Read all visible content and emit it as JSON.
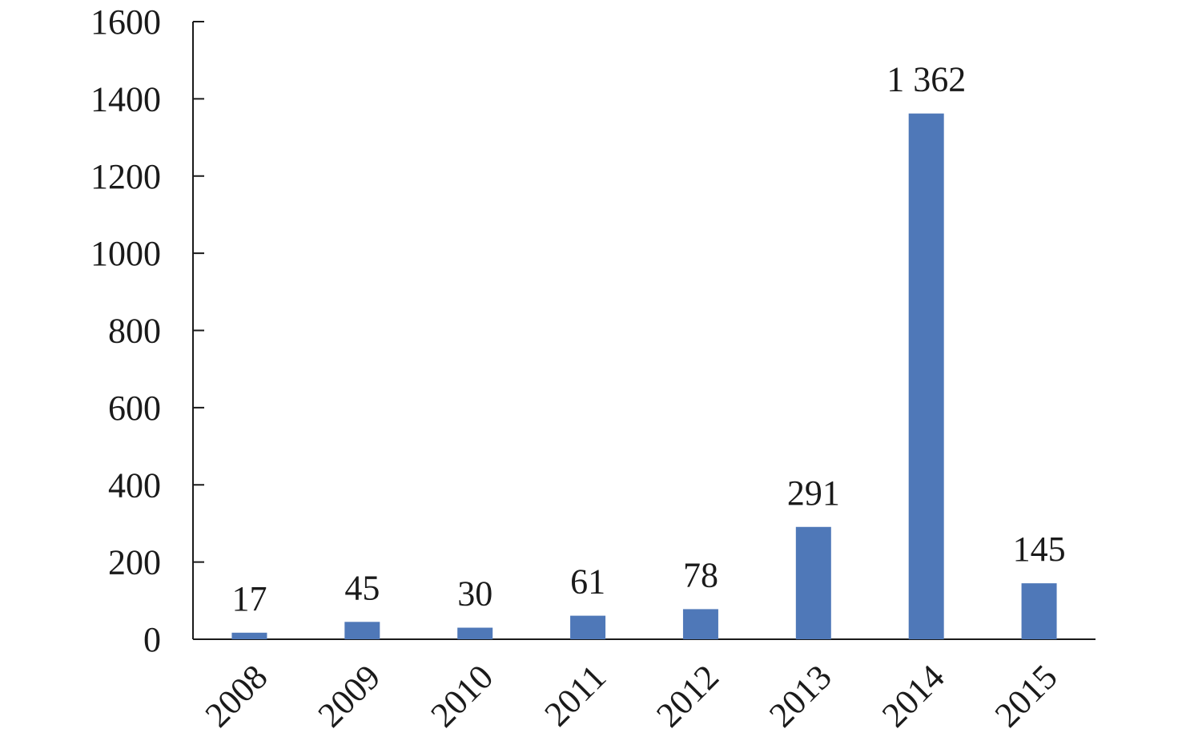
{
  "chart_data": {
    "type": "bar",
    "categories": [
      "2008",
      "2009",
      "2010",
      "2011",
      "2012",
      "2013",
      "2014",
      "2015"
    ],
    "values": [
      17,
      45,
      30,
      61,
      78,
      291,
      1362,
      145
    ],
    "data_labels": [
      "17",
      "45",
      "30",
      "61",
      "78",
      "291",
      "1 362",
      "145"
    ],
    "bar_color": "#4f78b8",
    "ylim": [
      0,
      1600
    ],
    "yticks": [
      0,
      200,
      400,
      600,
      800,
      1000,
      1200,
      1400,
      1600
    ],
    "grid": false,
    "title": "",
    "xlabel": "",
    "ylabel": ""
  }
}
